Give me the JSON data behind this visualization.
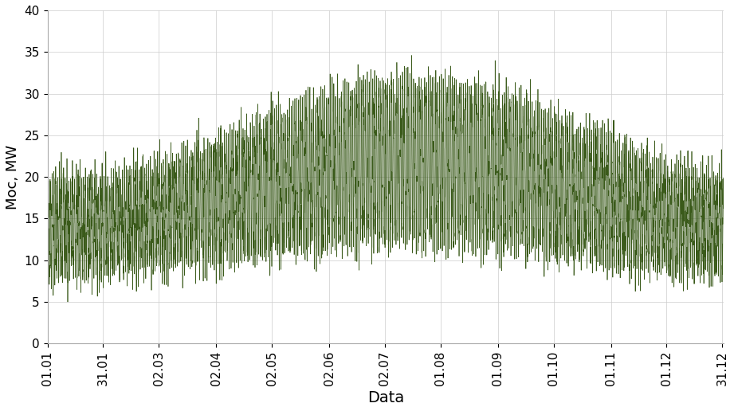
{
  "ylabel": "Moc, MW",
  "xlabel": "Data",
  "ylim": [
    0,
    40
  ],
  "yticks": [
    0,
    5,
    10,
    15,
    20,
    25,
    30,
    35,
    40
  ],
  "xtick_labels": [
    "01.01",
    "31.01",
    "02.03",
    "02.04",
    "02.05",
    "02.06",
    "02.07",
    "01.08",
    "01.09",
    "01.10",
    "01.11",
    "01.12",
    "31.12"
  ],
  "line_color": "#3a5a1a",
  "n_points": 8760,
  "seed": 42,
  "background_color": "#ffffff",
  "grid_color": "#cccccc",
  "ylabel_fontsize": 13,
  "xlabel_fontsize": 14,
  "tick_fontsize": 11
}
